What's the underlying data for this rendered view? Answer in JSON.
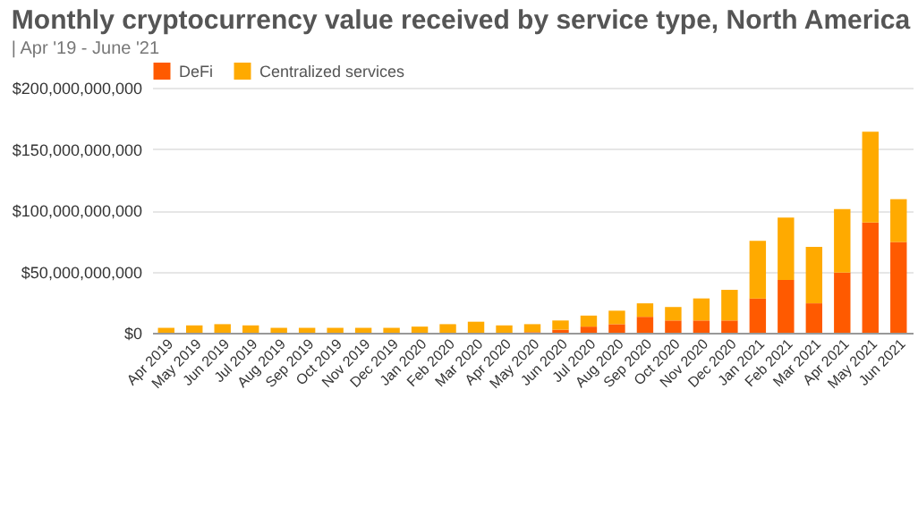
{
  "chart_data": {
    "type": "bar",
    "title": "Monthly cryptocurrency value received by service type, North America",
    "subtitle": "| Apr '19 - June '21",
    "categories": [
      "Apr 2019",
      "May 2019",
      "Jun 2019",
      "Jul 2019",
      "Aug 2019",
      "Sep 2019",
      "Oct 2019",
      "Nov 2019",
      "Dec 2019",
      "Jan 2020",
      "Feb 2020",
      "Mar 2020",
      "Apr 2020",
      "May 2020",
      "Jun 2020",
      "Jul 2020",
      "Aug 2020",
      "Sep 2020",
      "Oct 2020",
      "Nov 2020",
      "Dec 2020",
      "Jan 2021",
      "Feb 2021",
      "Mar 2021",
      "Apr 2021",
      "May 2021",
      "Jun 2021"
    ],
    "stacked": true,
    "series": [
      {
        "name": "DeFi",
        "color": "#ff5a00",
        "values": [
          0,
          0,
          0,
          0,
          0,
          0,
          0,
          0,
          0,
          0,
          0,
          0,
          0,
          500000000,
          2500000000,
          5000000000,
          7000000000,
          13000000000,
          10000000000,
          10000000000,
          10000000000,
          28000000000,
          43000000000,
          24000000000,
          49000000000,
          90000000000,
          74000000000
        ]
      },
      {
        "name": "Centralized services",
        "color": "#ffaa00",
        "values": [
          4000000000,
          6000000000,
          7000000000,
          6000000000,
          4000000000,
          4000000000,
          4000000000,
          4000000000,
          4000000000,
          5000000000,
          7000000000,
          9000000000,
          6000000000,
          6500000000,
          7500000000,
          9000000000,
          11000000000,
          11000000000,
          11000000000,
          18000000000,
          25000000000,
          47000000000,
          51000000000,
          46000000000,
          52000000000,
          74000000000,
          35000000000
        ]
      }
    ],
    "ylim": [
      0,
      200000000000
    ],
    "yticks": [
      {
        "value": 0,
        "label": "$0"
      },
      {
        "value": 50000000000,
        "label": "$50,000,000,000"
      },
      {
        "value": 100000000000,
        "label": "$100,000,000,000"
      },
      {
        "value": 150000000000,
        "label": "$150,000,000,000"
      },
      {
        "value": 200000000000,
        "label": "$200,000,000,000"
      }
    ],
    "grid": "y",
    "legend": "top"
  }
}
